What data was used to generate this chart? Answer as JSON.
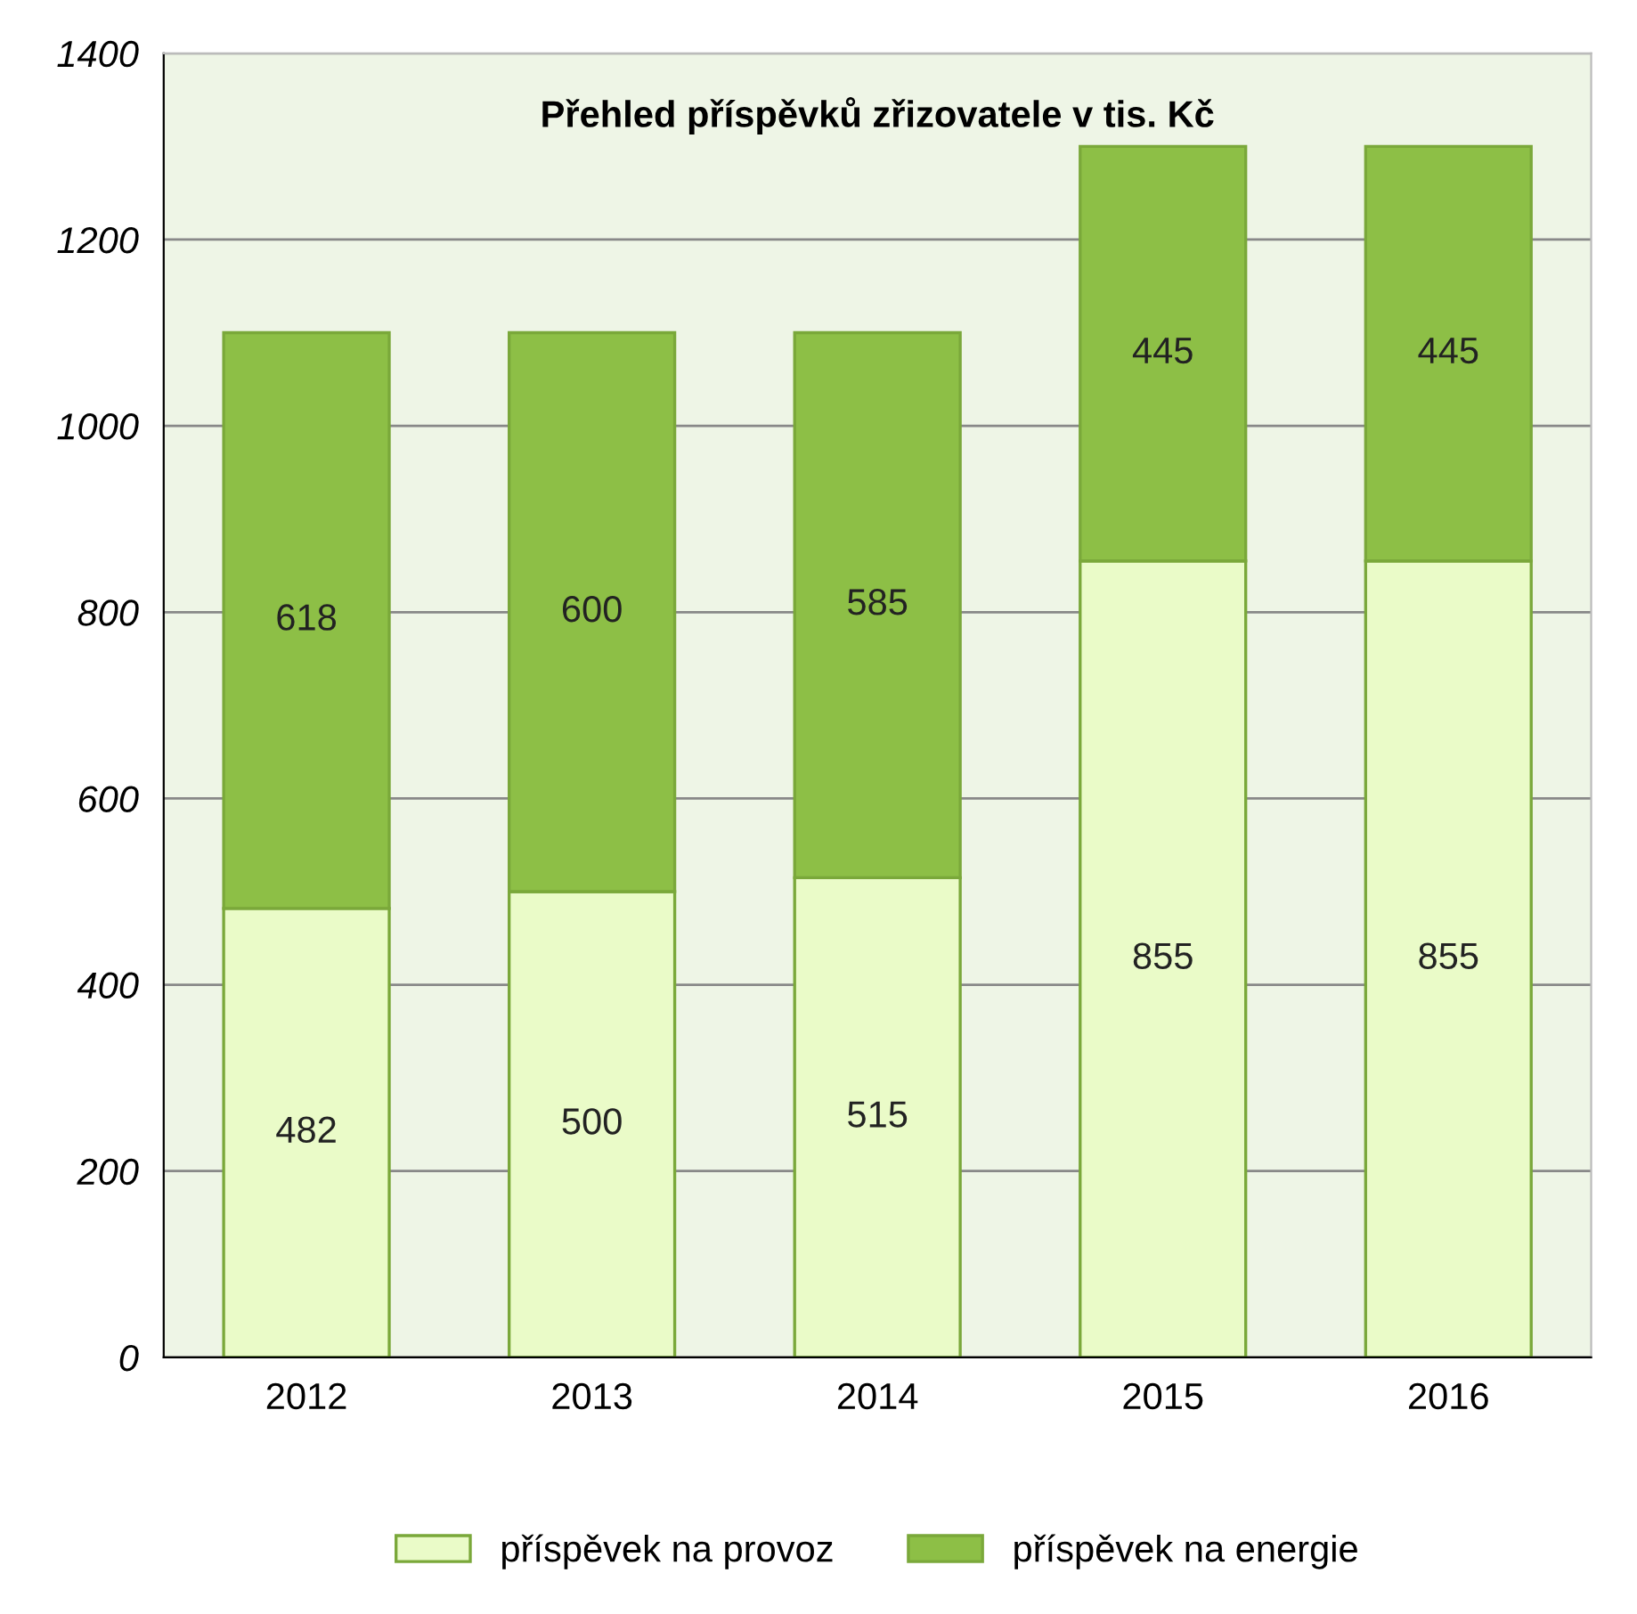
{
  "chart_data": {
    "type": "bar",
    "title": "Přehled příspěvků zřizovatele v tis. Kč",
    "categories": [
      "2012",
      "2013",
      "2014",
      "2015",
      "2016"
    ],
    "series": [
      {
        "name": "příspěvek na provoz",
        "color": "#eafbc8",
        "values": [
          482,
          500,
          515,
          855,
          855
        ]
      },
      {
        "name": "příspěvek na energie",
        "color": "#8dbf46",
        "values": [
          618,
          600,
          585,
          445,
          445
        ]
      }
    ],
    "stacked": true,
    "data_labels": true,
    "ylim": [
      0,
      1400
    ],
    "yticks": [
      0,
      200,
      400,
      600,
      800,
      1000,
      1200,
      1400
    ],
    "grid": "y",
    "legend": "bottom"
  }
}
